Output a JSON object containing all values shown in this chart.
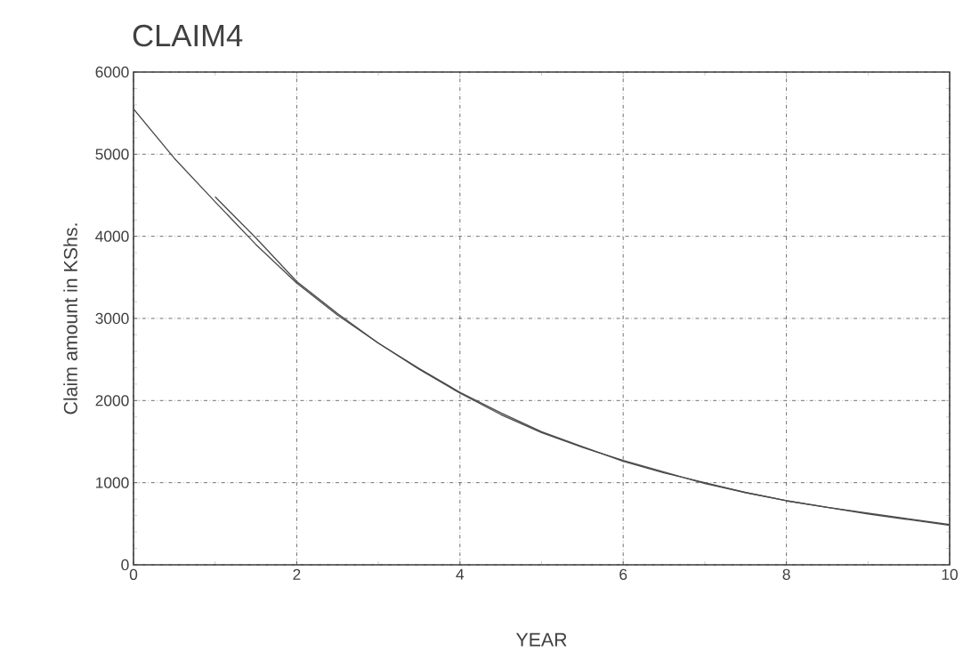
{
  "chart_data": {
    "type": "line",
    "title": "CLAIM4",
    "xlabel": "YEAR",
    "ylabel": "Claim amount in KShs.",
    "xlim": [
      0,
      10
    ],
    "ylim": [
      0,
      6000
    ],
    "xticks": [
      0,
      2,
      4,
      6,
      8,
      10
    ],
    "yticks": [
      0,
      1000,
      2000,
      3000,
      4000,
      5000,
      6000
    ],
    "grid": true,
    "line_style": "solid",
    "marker": "none",
    "series": [
      {
        "color": "#4a4a4a",
        "x": [
          0,
          0.5,
          1,
          1.5,
          2,
          2.5,
          3,
          3.5,
          4,
          4.5,
          5,
          5.5,
          6,
          6.5,
          7,
          7.5,
          8,
          8.5,
          9,
          9.5,
          10
        ],
        "values": [
          5550,
          4950,
          4420,
          3900,
          3430,
          3040,
          2700,
          2380,
          2090,
          1830,
          1610,
          1430,
          1270,
          1130,
          990,
          880,
          780,
          700,
          620,
          550,
          480
        ]
      },
      {
        "color": "#4a4a4a",
        "x": [
          1,
          1.5,
          2,
          2.5,
          3,
          3.5,
          4,
          4.5,
          5,
          5.5,
          6,
          6.5,
          7,
          7.5,
          8,
          8.5,
          9,
          9.5,
          10
        ],
        "values": [
          4480,
          3980,
          3450,
          3060,
          2700,
          2390,
          2100,
          1850,
          1620,
          1440,
          1260,
          1120,
          1000,
          880,
          780,
          700,
          630,
          560,
          490
        ]
      }
    ]
  }
}
